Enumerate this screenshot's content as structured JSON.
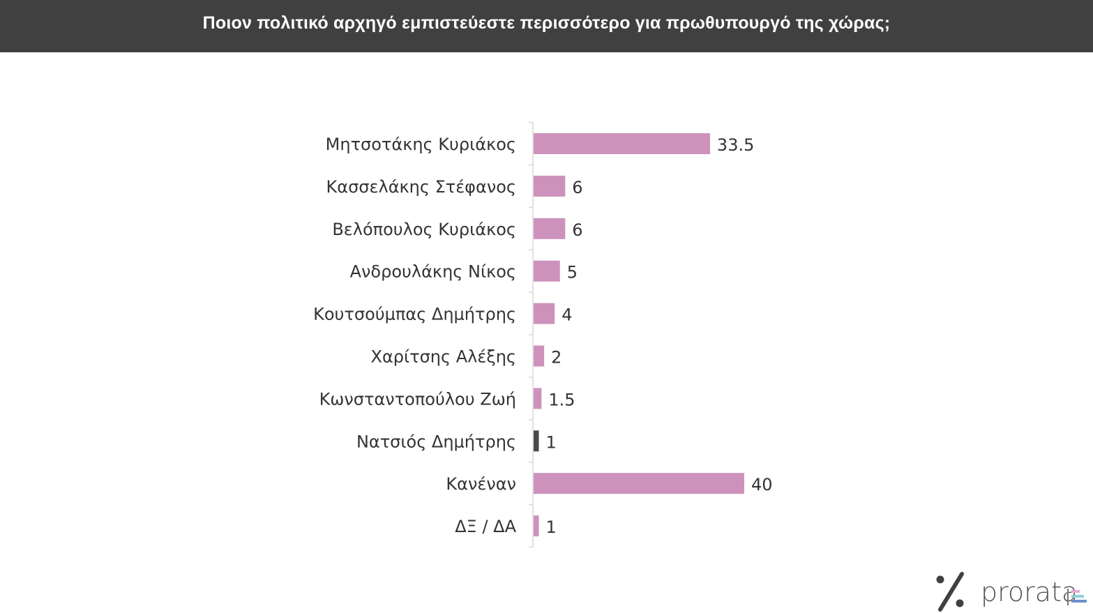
{
  "header": {
    "title": "Ποιον πολιτικό αρχηγό εμπιστεύεστε περισσότερο για πρωθυπουργό της χώρας;"
  },
  "chart_data": {
    "type": "bar",
    "orientation": "horizontal",
    "title": "Ποιον πολιτικό αρχηγό εμπιστεύεστε περισσότερο για πρωθυπουργό της χώρας;",
    "categories": [
      "Μητσοτάκης Κυριάκος",
      "Κασσελάκης Στέφανος",
      "Βελόπουλος Κυριάκος",
      "Ανδρουλάκης Νίκος",
      "Κουτσούμπας Δημήτρης",
      "Χαρίτσης Αλέξης",
      "Κωνσταντοπούλου Ζωή",
      "Νατσιός Δημήτρης",
      "Κανέναν",
      "ΔΞ / ΔΑ"
    ],
    "values": [
      33.5,
      6,
      6,
      5,
      4,
      2,
      1.5,
      1,
      40,
      1
    ],
    "value_labels": [
      "33.5",
      "6",
      "6",
      "5",
      "4",
      "2",
      "1.5",
      "1",
      "40",
      "1"
    ],
    "bar_colors": [
      "#cc92bb",
      "#cc92bb",
      "#cc92bb",
      "#cc92bb",
      "#cc92bb",
      "#cc92bb",
      "#cc92bb",
      "#4a4a4a",
      "#cc92bb",
      "#cc92bb"
    ],
    "xlim": [
      0,
      40
    ],
    "grid": false,
    "legend": "none"
  },
  "logo": {
    "text": "prorata",
    "icon": "percent-icon",
    "bar_colors": [
      "#e7a9d2",
      "#8fd1d6",
      "#6e8fc9"
    ]
  }
}
